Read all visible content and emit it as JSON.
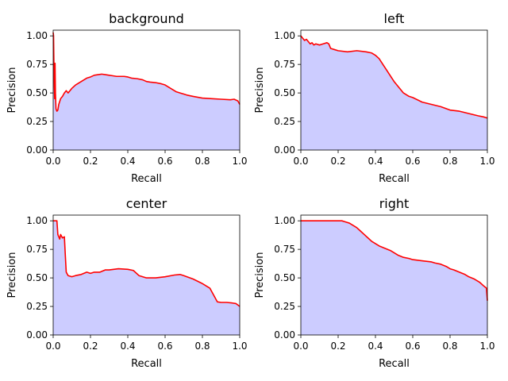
{
  "chart_data": [
    {
      "type": "area",
      "title": "background",
      "xlabel": "Recall",
      "ylabel": "Precision",
      "xlim": [
        0.0,
        1.0
      ],
      "ylim": [
        0.0,
        1.05
      ],
      "xticks": [
        "0.0",
        "0.2",
        "0.4",
        "0.6",
        "0.8",
        "1.0"
      ],
      "yticks": [
        "0.00",
        "0.25",
        "0.50",
        "0.75",
        "1.00"
      ],
      "grid": false,
      "line_color": "#ff0000",
      "fill_color": "#ccccff",
      "x": [
        0.0,
        0.002,
        0.004,
        0.006,
        0.008,
        0.01,
        0.012,
        0.015,
        0.02,
        0.025,
        0.03,
        0.04,
        0.05,
        0.06,
        0.07,
        0.08,
        0.09,
        0.1,
        0.12,
        0.14,
        0.16,
        0.18,
        0.2,
        0.22,
        0.24,
        0.26,
        0.28,
        0.3,
        0.32,
        0.34,
        0.36,
        0.38,
        0.4,
        0.42,
        0.45,
        0.48,
        0.5,
        0.52,
        0.55,
        0.58,
        0.6,
        0.62,
        0.64,
        0.66,
        0.68,
        0.7,
        0.72,
        0.75,
        0.8,
        0.85,
        0.9,
        0.95,
        0.97,
        0.99,
        1.0
      ],
      "y": [
        1.03,
        1.0,
        0.75,
        0.55,
        0.45,
        0.76,
        0.5,
        0.36,
        0.34,
        0.35,
        0.4,
        0.45,
        0.47,
        0.5,
        0.52,
        0.5,
        0.52,
        0.54,
        0.57,
        0.59,
        0.61,
        0.63,
        0.64,
        0.655,
        0.66,
        0.665,
        0.66,
        0.655,
        0.65,
        0.645,
        0.645,
        0.645,
        0.64,
        0.63,
        0.625,
        0.615,
        0.6,
        0.595,
        0.59,
        0.58,
        0.57,
        0.55,
        0.53,
        0.51,
        0.5,
        0.49,
        0.48,
        0.47,
        0.455,
        0.45,
        0.445,
        0.44,
        0.445,
        0.43,
        0.4
      ]
    },
    {
      "type": "area",
      "title": "left",
      "xlabel": "Recall",
      "ylabel": "Precision",
      "xlim": [
        0.0,
        1.0
      ],
      "ylim": [
        0.0,
        1.05
      ],
      "xticks": [
        "0.0",
        "0.2",
        "0.4",
        "0.6",
        "0.8",
        "1.0"
      ],
      "yticks": [
        "0.00",
        "0.25",
        "0.50",
        "0.75",
        "1.00"
      ],
      "grid": false,
      "line_color": "#ff0000",
      "fill_color": "#ccccff",
      "x": [
        0.0,
        0.01,
        0.02,
        0.03,
        0.04,
        0.05,
        0.06,
        0.07,
        0.08,
        0.1,
        0.12,
        0.14,
        0.15,
        0.16,
        0.18,
        0.2,
        0.25,
        0.3,
        0.35,
        0.38,
        0.4,
        0.42,
        0.44,
        0.46,
        0.48,
        0.5,
        0.52,
        0.55,
        0.58,
        0.6,
        0.65,
        0.7,
        0.75,
        0.8,
        0.85,
        0.9,
        0.95,
        0.98,
        1.0
      ],
      "y": [
        1.0,
        0.98,
        0.96,
        0.97,
        0.95,
        0.93,
        0.94,
        0.92,
        0.93,
        0.92,
        0.93,
        0.94,
        0.93,
        0.89,
        0.88,
        0.87,
        0.86,
        0.87,
        0.86,
        0.85,
        0.83,
        0.8,
        0.75,
        0.7,
        0.65,
        0.6,
        0.56,
        0.5,
        0.47,
        0.46,
        0.42,
        0.4,
        0.38,
        0.35,
        0.34,
        0.32,
        0.3,
        0.29,
        0.28
      ]
    },
    {
      "type": "area",
      "title": "center",
      "xlabel": "Recall",
      "ylabel": "Precision",
      "xlim": [
        0.0,
        1.0
      ],
      "ylim": [
        0.0,
        1.05
      ],
      "xticks": [
        "0.0",
        "0.2",
        "0.4",
        "0.6",
        "0.8",
        "1.0"
      ],
      "yticks": [
        "0.00",
        "0.25",
        "0.50",
        "0.75",
        "1.00"
      ],
      "grid": false,
      "line_color": "#ff0000",
      "fill_color": "#ccccff",
      "x": [
        0.0,
        0.01,
        0.02,
        0.025,
        0.03,
        0.035,
        0.04,
        0.05,
        0.06,
        0.065,
        0.07,
        0.08,
        0.1,
        0.12,
        0.15,
        0.18,
        0.2,
        0.22,
        0.25,
        0.28,
        0.3,
        0.35,
        0.4,
        0.43,
        0.46,
        0.5,
        0.55,
        0.6,
        0.65,
        0.68,
        0.7,
        0.75,
        0.8,
        0.84,
        0.86,
        0.88,
        0.9,
        0.93,
        0.96,
        0.98,
        1.0
      ],
      "y": [
        1.0,
        1.0,
        1.0,
        0.88,
        0.86,
        0.84,
        0.88,
        0.85,
        0.86,
        0.7,
        0.55,
        0.52,
        0.51,
        0.52,
        0.53,
        0.55,
        0.54,
        0.55,
        0.55,
        0.57,
        0.57,
        0.58,
        0.575,
        0.565,
        0.52,
        0.5,
        0.5,
        0.51,
        0.525,
        0.53,
        0.52,
        0.49,
        0.45,
        0.41,
        0.35,
        0.29,
        0.285,
        0.285,
        0.28,
        0.275,
        0.25
      ]
    },
    {
      "type": "area",
      "title": "right",
      "xlabel": "Recall",
      "ylabel": "Precision",
      "xlim": [
        0.0,
        1.0
      ],
      "ylim": [
        0.0,
        1.05
      ],
      "xticks": [
        "0.0",
        "0.2",
        "0.4",
        "0.6",
        "0.8",
        "1.0"
      ],
      "yticks": [
        "0.00",
        "0.25",
        "0.50",
        "0.75",
        "1.00"
      ],
      "grid": false,
      "line_color": "#ff0000",
      "fill_color": "#ccccff",
      "x": [
        0.0,
        0.05,
        0.1,
        0.15,
        0.2,
        0.22,
        0.24,
        0.26,
        0.28,
        0.3,
        0.32,
        0.34,
        0.36,
        0.38,
        0.4,
        0.42,
        0.45,
        0.48,
        0.5,
        0.52,
        0.55,
        0.58,
        0.6,
        0.65,
        0.7,
        0.72,
        0.75,
        0.78,
        0.8,
        0.82,
        0.85,
        0.88,
        0.9,
        0.93,
        0.96,
        0.98,
        0.995,
        1.0
      ],
      "y": [
        1.0,
        1.0,
        1.0,
        1.0,
        1.0,
        1.0,
        0.99,
        0.98,
        0.96,
        0.94,
        0.91,
        0.88,
        0.85,
        0.82,
        0.8,
        0.78,
        0.76,
        0.74,
        0.72,
        0.7,
        0.68,
        0.67,
        0.66,
        0.65,
        0.64,
        0.63,
        0.62,
        0.6,
        0.58,
        0.57,
        0.55,
        0.53,
        0.51,
        0.49,
        0.46,
        0.43,
        0.41,
        0.3
      ]
    }
  ]
}
